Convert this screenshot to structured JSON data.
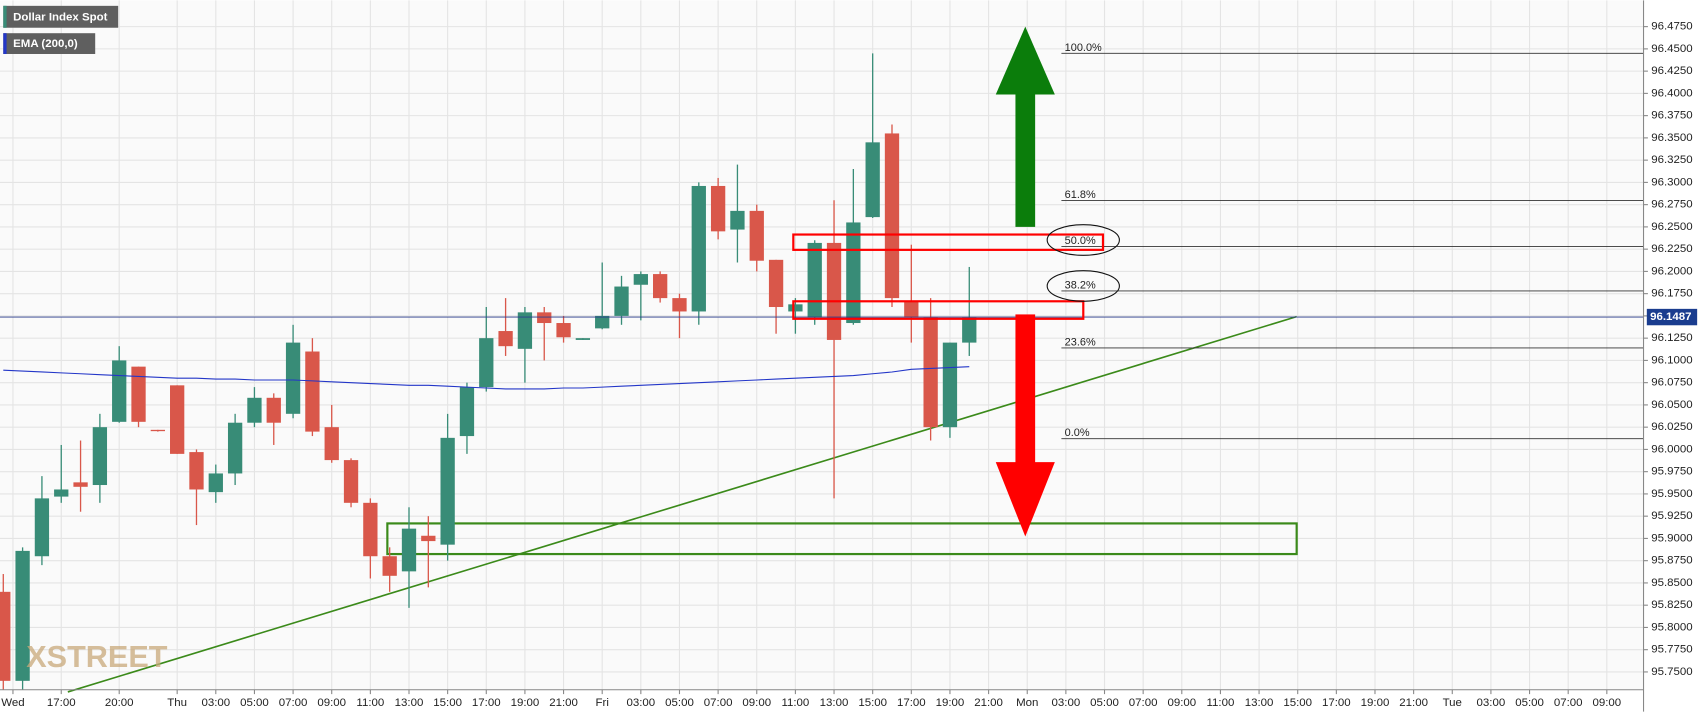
{
  "chart_data": {
    "type": "candlestick",
    "title": "Dollar Index Spot",
    "x": [
      0,
      1,
      2,
      3,
      4,
      5,
      6,
      7,
      8,
      9,
      10,
      11,
      12,
      13,
      14,
      15,
      16,
      17,
      18,
      19,
      20,
      21,
      22,
      23,
      24,
      25,
      26,
      27,
      28,
      29,
      30,
      31,
      32,
      33,
      34,
      35,
      36,
      37,
      38,
      39,
      40,
      41,
      42,
      43,
      44,
      45,
      46,
      47,
      48,
      49,
      50
    ],
    "open": [
      95.84,
      95.74,
      95.88,
      95.947,
      95.963,
      95.96,
      96.031,
      96.093,
      96.022,
      96.072,
      95.997,
      95.952,
      95.973,
      96.03,
      96.058,
      96.04,
      96.11,
      96.025,
      95.988,
      95.94,
      95.88,
      95.863,
      95.903,
      95.893,
      96.015,
      96.07,
      96.133,
      96.113,
      96.154,
      96.142,
      96.123,
      96.136,
      96.15,
      96.185,
      96.197,
      96.17,
      96.155,
      96.296,
      96.247,
      96.268,
      96.213,
      96.155,
      96.148,
      96.232,
      96.142,
      96.261,
      96.355,
      96.166,
      96.148,
      96.025,
      96.12
    ],
    "high": [
      95.86,
      95.89,
      95.97,
      96.005,
      96.01,
      96.04,
      96.116,
      96.093,
      96.022,
      96.072,
      96.0,
      95.983,
      96.04,
      96.07,
      96.063,
      96.14,
      96.125,
      96.05,
      95.99,
      95.945,
      95.89,
      95.935,
      95.925,
      96.04,
      96.075,
      96.16,
      96.17,
      96.16,
      96.16,
      96.15,
      96.125,
      96.21,
      96.195,
      96.2,
      96.2,
      96.175,
      96.3,
      96.305,
      96.32,
      96.275,
      96.213,
      96.17,
      96.235,
      96.28,
      96.315,
      96.445,
      96.365,
      96.23,
      96.17,
      96.12,
      96.205
    ],
    "low": [
      95.73,
      95.73,
      95.87,
      95.94,
      95.93,
      95.94,
      96.03,
      96.025,
      96.02,
      95.995,
      95.915,
      95.94,
      95.96,
      96.025,
      96.005,
      96.035,
      96.015,
      95.985,
      95.935,
      95.855,
      95.84,
      95.822,
      95.845,
      95.875,
      95.995,
      96.065,
      96.105,
      96.075,
      96.1,
      96.12,
      96.123,
      96.135,
      96.14,
      96.145,
      96.165,
      96.125,
      96.14,
      96.236,
      96.21,
      96.2,
      96.13,
      96.13,
      96.14,
      95.945,
      96.14,
      96.26,
      96.16,
      96.12,
      96.01,
      96.013,
      96.105
    ],
    "close": [
      95.74,
      95.886,
      95.945,
      95.955,
      95.958,
      96.025,
      96.1,
      96.031,
      96.021,
      95.995,
      95.955,
      95.973,
      96.03,
      96.058,
      96.03,
      96.12,
      96.02,
      95.988,
      95.94,
      95.88,
      95.858,
      95.911,
      95.897,
      96.013,
      96.07,
      96.125,
      96.116,
      96.154,
      96.142,
      96.126,
      96.125,
      96.15,
      96.183,
      96.197,
      96.17,
      96.155,
      96.296,
      96.245,
      96.268,
      96.212,
      96.16,
      96.163,
      96.232,
      96.123,
      96.255,
      96.345,
      96.17,
      96.148,
      96.025,
      96.12,
      96.148
    ],
    "up_color": "#388c77",
    "down_color": "#d9574a",
    "indicator": {
      "name": "EMA (200,0)",
      "color": "#2336c8",
      "values": [
        96.089,
        96.088,
        96.087,
        96.086,
        96.085,
        96.084,
        96.083,
        96.082,
        96.081,
        96.08,
        96.08,
        96.079,
        96.079,
        96.078,
        96.078,
        96.078,
        96.077,
        96.076,
        96.075,
        96.074,
        96.073,
        96.072,
        96.072,
        96.071,
        96.07,
        96.069,
        96.068,
        96.068,
        96.068,
        96.069,
        96.069,
        96.07,
        96.071,
        96.072,
        96.073,
        96.074,
        96.075,
        96.076,
        96.077,
        96.078,
        96.079,
        96.08,
        96.081,
        96.082,
        96.083,
        96.085,
        96.087,
        96.09,
        96.091,
        96.092,
        96.093
      ]
    },
    "last_price": 96.1487,
    "fib_levels": [
      {
        "label": "100.0%",
        "value": 96.445
      },
      {
        "label": "61.8%",
        "value": 96.2796
      },
      {
        "label": "50.0%",
        "value": 96.228
      },
      {
        "label": "38.2%",
        "value": 96.178
      },
      {
        "label": "23.6%",
        "value": 96.114
      },
      {
        "label": "0.0%",
        "value": 96.012
      }
    ],
    "watermark": "XSTREET",
    "xlim": [
      -0.17,
      84.9
    ],
    "xticks": [
      {
        "value": 0.5,
        "label": "Wed"
      },
      {
        "value": 3,
        "label": "17:00"
      },
      {
        "value": 6,
        "label": "20:00"
      },
      {
        "value": 9,
        "label": "Thu"
      },
      {
        "value": 11,
        "label": "03:00"
      },
      {
        "value": 13,
        "label": "05:00"
      },
      {
        "value": 15,
        "label": "07:00"
      },
      {
        "value": 17,
        "label": "09:00"
      },
      {
        "value": 19,
        "label": "11:00"
      },
      {
        "value": 21,
        "label": "13:00"
      },
      {
        "value": 23,
        "label": "15:00"
      },
      {
        "value": 25,
        "label": "17:00"
      },
      {
        "value": 27,
        "label": "19:00"
      },
      {
        "value": 29,
        "label": "21:00"
      },
      {
        "value": 31,
        "label": "Fri"
      },
      {
        "value": 33,
        "label": "03:00"
      },
      {
        "value": 35,
        "label": "05:00"
      },
      {
        "value": 37,
        "label": "07:00"
      },
      {
        "value": 39,
        "label": "09:00"
      },
      {
        "value": 41,
        "label": "11:00"
      },
      {
        "value": 43,
        "label": "13:00"
      },
      {
        "value": 45,
        "label": "15:00"
      },
      {
        "value": 47,
        "label": "17:00"
      },
      {
        "value": 49,
        "label": "19:00"
      },
      {
        "value": 51,
        "label": "21:00"
      },
      {
        "value": 53,
        "label": "Mon"
      },
      {
        "value": 55,
        "label": "03:00"
      },
      {
        "value": 57,
        "label": "05:00"
      },
      {
        "value": 59,
        "label": "07:00"
      },
      {
        "value": 61,
        "label": "09:00"
      },
      {
        "value": 63,
        "label": "11:00"
      },
      {
        "value": 65,
        "label": "13:00"
      },
      {
        "value": 67,
        "label": "15:00"
      },
      {
        "value": 69,
        "label": "17:00"
      },
      {
        "value": 71,
        "label": "19:00"
      },
      {
        "value": 73,
        "label": "21:00"
      },
      {
        "value": 75,
        "label": "Tue"
      },
      {
        "value": 77,
        "label": "03:00"
      },
      {
        "value": 79,
        "label": "05:00"
      },
      {
        "value": 81,
        "label": "07:00"
      },
      {
        "value": 83,
        "label": "09:00"
      }
    ],
    "ylim": [
      95.73,
      96.5045
    ],
    "yticks": [
      {
        "value": 95.75,
        "label": "95.7500"
      },
      {
        "value": 95.775,
        "label": "95.7750"
      },
      {
        "value": 95.8,
        "label": "95.8000"
      },
      {
        "value": 95.825,
        "label": "95.8250"
      },
      {
        "value": 95.85,
        "label": "95.8500"
      },
      {
        "value": 95.875,
        "label": "95.8750"
      },
      {
        "value": 95.9,
        "label": "95.9000"
      },
      {
        "value": 95.925,
        "label": "95.9250"
      },
      {
        "value": 95.95,
        "label": "95.9500"
      },
      {
        "value": 95.975,
        "label": "95.9750"
      },
      {
        "value": 96.0,
        "label": "96.0000"
      },
      {
        "value": 96.025,
        "label": "96.0250"
      },
      {
        "value": 96.05,
        "label": "96.0500"
      },
      {
        "value": 96.075,
        "label": "96.0750"
      },
      {
        "value": 96.1,
        "label": "96.1000"
      },
      {
        "value": 96.125,
        "label": "96.1250"
      },
      {
        "value": 96.15,
        "label": "96.1500"
      },
      {
        "value": 96.175,
        "label": "96.1750"
      },
      {
        "value": 96.2,
        "label": "96.2000"
      },
      {
        "value": 96.225,
        "label": "96.2250"
      },
      {
        "value": 96.25,
        "label": "96.2500"
      },
      {
        "value": 96.275,
        "label": "96.2750"
      },
      {
        "value": 96.3,
        "label": "96.3000"
      },
      {
        "value": 96.325,
        "label": "96.3250"
      },
      {
        "value": 96.35,
        "label": "96.3500"
      },
      {
        "value": 96.375,
        "label": "96.3750"
      },
      {
        "value": 96.4,
        "label": "96.4000"
      },
      {
        "value": 96.425,
        "label": "96.4250"
      },
      {
        "value": 96.45,
        "label": "96.4500"
      },
      {
        "value": 96.475,
        "label": "96.4750"
      }
    ],
    "grid": true
  }
}
